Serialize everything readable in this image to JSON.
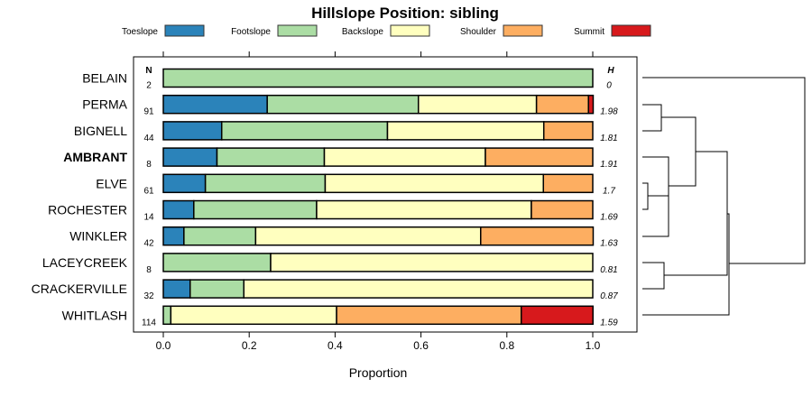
{
  "chart_data": {
    "type": "bar",
    "orientation": "horizontal-stacked",
    "title": "Hillslope Position: sibling",
    "xlabel": "Proportion",
    "xlim": [
      0,
      1
    ],
    "xticks": [
      "0.0",
      "0.2",
      "0.4",
      "0.6",
      "0.8",
      "1.0"
    ],
    "legend_placement": "top",
    "series_names": [
      "Toeslope",
      "Footslope",
      "Backslope",
      "Shoulder",
      "Summit"
    ],
    "colors": [
      "#2b83ba",
      "#abdda4",
      "#ffffbf",
      "#fdae61",
      "#d7191c"
    ],
    "n_header": "N",
    "h_header": "H",
    "rows": [
      {
        "name": "BELAIN",
        "n": "2",
        "h": "0",
        "bold": false,
        "values": [
          0,
          1,
          0,
          0,
          0
        ]
      },
      {
        "name": "PERMA",
        "n": "91",
        "h": "1.98",
        "bold": false,
        "values": [
          0.242,
          0.352,
          0.275,
          0.121,
          0.011
        ]
      },
      {
        "name": "BIGNELL",
        "n": "44",
        "h": "1.81",
        "bold": false,
        "values": [
          0.136,
          0.386,
          0.364,
          0.114,
          0
        ]
      },
      {
        "name": "AMBRANT",
        "n": "8",
        "h": "1.91",
        "bold": true,
        "values": [
          0.125,
          0.25,
          0.375,
          0.25,
          0
        ]
      },
      {
        "name": "ELVE",
        "n": "61",
        "h": "1.7",
        "bold": false,
        "values": [
          0.098,
          0.279,
          0.508,
          0.115,
          0
        ]
      },
      {
        "name": "ROCHESTER",
        "n": "14",
        "h": "1.69",
        "bold": false,
        "values": [
          0.071,
          0.286,
          0.5,
          0.143,
          0
        ]
      },
      {
        "name": "WINKLER",
        "n": "42",
        "h": "1.63",
        "bold": false,
        "values": [
          0.048,
          0.167,
          0.524,
          0.262,
          0
        ]
      },
      {
        "name": "LACEYCREEK",
        "n": "8",
        "h": "0.81",
        "bold": false,
        "values": [
          0,
          0.25,
          0.75,
          0,
          0
        ]
      },
      {
        "name": "CRACKERVILLE",
        "n": "32",
        "h": "0.87",
        "bold": false,
        "values": [
          0.0625,
          0.125,
          0.8125,
          0,
          0
        ]
      },
      {
        "name": "WHITLASH",
        "n": "114",
        "h": "1.59",
        "bold": false,
        "values": [
          0,
          0.0175,
          0.386,
          0.43,
          0.167
        ]
      }
    ]
  }
}
